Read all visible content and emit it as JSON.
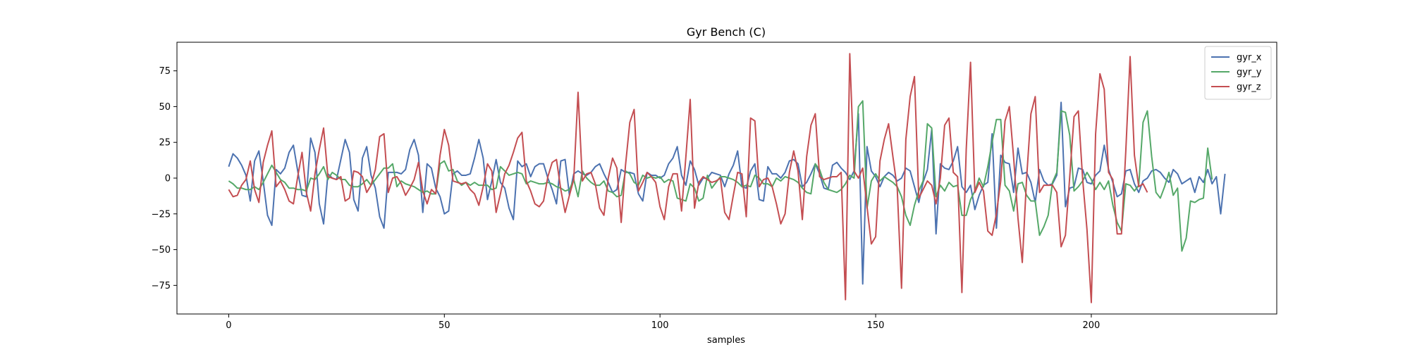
{
  "chart_data": {
    "type": "line",
    "title": "Gyr Bench (C)",
    "xlabel": "samples",
    "ylabel": "",
    "xlim": [
      -12,
      243
    ],
    "ylim": [
      -95,
      95
    ],
    "xticks": [
      0,
      50,
      100,
      150,
      200
    ],
    "yticks": [
      -75,
      -50,
      -25,
      0,
      25,
      50,
      75
    ],
    "grid": false,
    "legend_position": "top-right",
    "x_start": 0,
    "x_step": 1,
    "series": [
      {
        "name": "gyr_x",
        "color": "#4c72b0",
        "values": [
          8,
          17,
          14,
          9,
          2,
          -16,
          12,
          19,
          -2,
          -26,
          -33,
          6,
          3,
          7,
          18,
          23,
          5,
          -12,
          -13,
          28,
          18,
          -18,
          -32,
          3,
          0,
          -1,
          13,
          27,
          18,
          -15,
          -23,
          14,
          22,
          2,
          -7,
          -27,
          -35,
          4,
          4,
          4,
          3,
          6,
          20,
          27,
          16,
          -24,
          10,
          7,
          -7,
          -13,
          -25,
          -23,
          3,
          5,
          2,
          2,
          3,
          14,
          27,
          14,
          -15,
          -2,
          13,
          -3,
          -7,
          -21,
          -29,
          12,
          8,
          10,
          1,
          8,
          10,
          10,
          0,
          -8,
          -18,
          12,
          13,
          -12,
          3,
          5,
          3,
          2,
          4,
          8,
          10,
          3,
          -3,
          -10,
          -8,
          6,
          4,
          4,
          3,
          -11,
          -16,
          4,
          2,
          2,
          0,
          2,
          10,
          14,
          22,
          2,
          -5,
          12,
          6,
          -5,
          0,
          0,
          4,
          3,
          2,
          -6,
          3,
          9,
          19,
          -6,
          -7,
          5,
          10,
          -15,
          -16,
          8,
          3,
          3,
          0,
          4,
          12,
          13,
          10,
          -6,
          -3,
          3,
          10,
          3,
          -7,
          -8,
          9,
          11,
          7,
          4,
          -1,
          5,
          45,
          -74,
          22,
          5,
          1,
          -6,
          1,
          4,
          2,
          -2,
          0,
          7,
          5,
          -6,
          -17,
          -3,
          6,
          34,
          -39,
          10,
          7,
          6,
          12,
          22,
          -6,
          -10,
          -5,
          -22,
          -12,
          -5,
          -3,
          31,
          -35,
          16,
          11,
          10,
          -10,
          21,
          3,
          4,
          -3,
          -17,
          6,
          -2,
          -5,
          -4,
          2,
          53,
          -20,
          -7,
          -6,
          7,
          6,
          -3,
          -4,
          2,
          5,
          23,
          6,
          -3,
          -13,
          -11,
          5,
          6,
          -4,
          -10,
          -2,
          0,
          5,
          6,
          4,
          0,
          -3,
          6,
          3,
          -4,
          -2,
          0,
          -10,
          1,
          -3,
          6,
          -4,
          1,
          -25,
          3
        ]
      },
      {
        "name": "gyr_y",
        "color": "#55a868",
        "values": [
          -2,
          -4,
          -7,
          -7,
          -8,
          -8,
          -6,
          -8,
          -3,
          3,
          9,
          4,
          -1,
          -3,
          -7,
          -7,
          -8,
          -8,
          -9,
          0,
          -1,
          3,
          8,
          -1,
          4,
          2,
          -1,
          -1,
          -5,
          -6,
          -6,
          -4,
          -1,
          -5,
          -1,
          3,
          7,
          7,
          10,
          -6,
          -2,
          -4,
          -5,
          -6,
          -8,
          -10,
          -9,
          -11,
          -11,
          10,
          12,
          5,
          6,
          -2,
          -5,
          -3,
          -5,
          -3,
          -5,
          -5,
          -5,
          -8,
          -7,
          8,
          5,
          2,
          3,
          4,
          3,
          -4,
          -2,
          -3,
          -4,
          -4,
          -3,
          -4,
          -6,
          -7,
          -9,
          -8,
          -1,
          -13,
          5,
          0,
          -3,
          -5,
          -5,
          -2,
          -9,
          -10,
          -13,
          -12,
          5,
          3,
          -3,
          -5,
          2,
          0,
          1,
          0,
          1,
          -3,
          -1,
          -2,
          -14,
          -15,
          -16,
          -4,
          -7,
          -16,
          -14,
          2,
          -7,
          -3,
          1,
          1,
          0,
          -1,
          -3,
          -6,
          -5,
          -6,
          2,
          0,
          -4,
          -4,
          -6,
          0,
          -2,
          1,
          0,
          -1,
          -3,
          -7,
          -10,
          -11,
          10,
          6,
          -3,
          -8,
          -9,
          -10,
          -8,
          -4,
          2,
          0,
          50,
          54,
          -21,
          -2,
          3,
          -2,
          1,
          -1,
          -3,
          -6,
          -13,
          -26,
          -33,
          -19,
          -9,
          -2,
          38,
          35,
          -13,
          -5,
          -9,
          -3,
          -6,
          -5,
          -26,
          -26,
          -15,
          -9,
          0,
          -6,
          8,
          25,
          41,
          41,
          -5,
          -9,
          -23,
          -4,
          -3,
          -12,
          -16,
          -16,
          -40,
          -34,
          -26,
          -3,
          4,
          47,
          46,
          30,
          -9,
          -6,
          -2,
          4,
          -1,
          -8,
          -3,
          -8,
          -2,
          -19,
          -31,
          -37,
          -4,
          -5,
          -9,
          -5,
          39,
          47,
          15,
          -10,
          -14,
          -6,
          4,
          -12,
          -7,
          -51,
          -42,
          -16,
          -17,
          -15,
          -14,
          21,
          -1
        ]
      },
      {
        "name": "gyr_z",
        "color": "#c44e52",
        "values": [
          -8,
          -13,
          -12,
          -5,
          -1,
          12,
          -8,
          -17,
          11,
          23,
          33,
          -6,
          -2,
          -8,
          -16,
          -18,
          1,
          18,
          -10,
          -23,
          3,
          20,
          35,
          1,
          0,
          -1,
          1,
          -16,
          -14,
          5,
          4,
          1,
          -10,
          -5,
          6,
          29,
          31,
          -10,
          0,
          1,
          -4,
          -12,
          -7,
          -1,
          11,
          -9,
          -18,
          -8,
          -11,
          16,
          34,
          23,
          -2,
          -3,
          -4,
          -3,
          -8,
          -11,
          -19,
          -6,
          10,
          5,
          -24,
          -11,
          3,
          9,
          18,
          28,
          32,
          -2,
          -9,
          -18,
          -20,
          -16,
          1,
          11,
          13,
          -8,
          -24,
          -12,
          -1,
          60,
          -2,
          3,
          4,
          -4,
          -21,
          -26,
          0,
          14,
          7,
          -31,
          9,
          39,
          48,
          -9,
          -3,
          4,
          1,
          -3,
          -20,
          -29,
          -6,
          3,
          3,
          -23,
          15,
          55,
          -21,
          -3,
          1,
          -1,
          -3,
          -2,
          0,
          -24,
          -29,
          -12,
          4,
          3,
          -27,
          42,
          40,
          -6,
          -1,
          0,
          -6,
          -18,
          -32,
          -25,
          4,
          19,
          5,
          -29,
          15,
          37,
          45,
          1,
          -1,
          0,
          1,
          1,
          4,
          -85,
          87,
          5,
          0,
          7,
          -20,
          -46,
          -41,
          12,
          27,
          38,
          15,
          -7,
          -77,
          27,
          57,
          71,
          -14,
          -8,
          -2,
          -5,
          -18,
          0,
          37,
          42,
          4,
          1,
          -80,
          20,
          81,
          -10,
          -3,
          -9,
          -37,
          -40,
          -25,
          -2,
          40,
          50,
          14,
          -28,
          -59,
          0,
          45,
          57,
          -10,
          -5,
          -5,
          -5,
          -10,
          -48,
          -40,
          1,
          43,
          47,
          -1,
          -36,
          -87,
          31,
          73,
          62,
          4,
          -1,
          -39,
          -39,
          19,
          85,
          16,
          -6,
          -4,
          -10
        ]
      }
    ]
  }
}
